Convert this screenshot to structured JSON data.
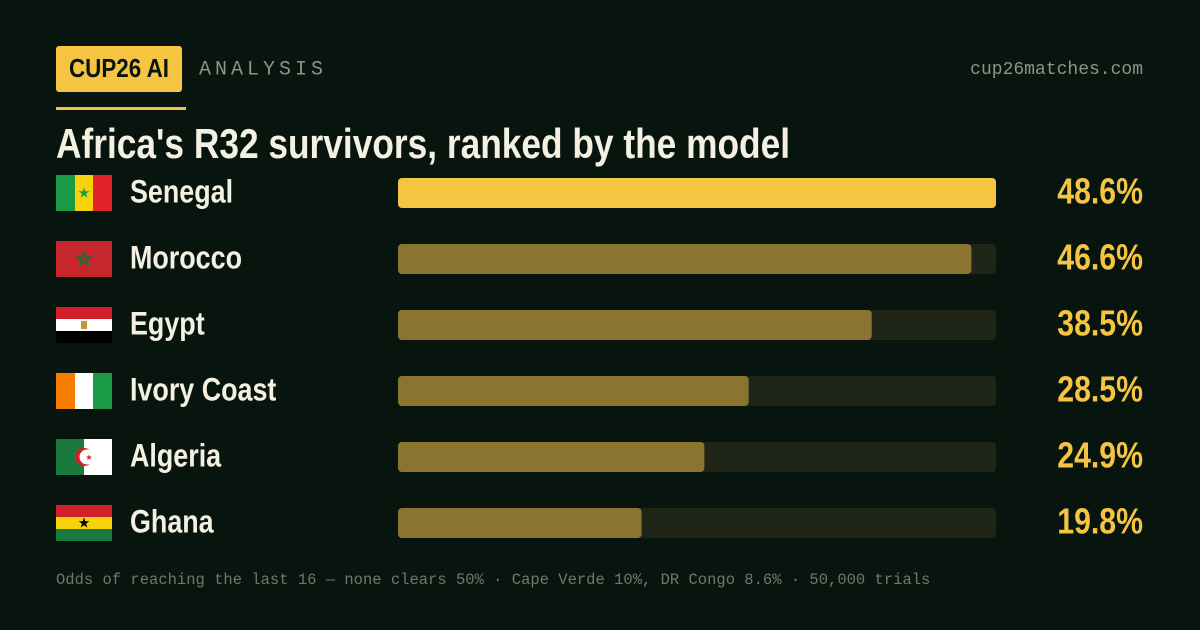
{
  "header": {
    "brand": "CUP26 AI",
    "section": "ANALYSIS",
    "site": "cup26matches.com"
  },
  "chart_data": {
    "type": "bar",
    "orientation": "horizontal",
    "title": "Africa's R32 survivors, ranked by the model",
    "categories": [
      "Senegal",
      "Morocco",
      "Egypt",
      "Ivory Coast",
      "Algeria",
      "Ghana"
    ],
    "values": [
      48.6,
      46.6,
      38.5,
      28.5,
      24.9,
      19.8
    ],
    "value_labels": [
      "48.6%",
      "46.6%",
      "38.5%",
      "28.5%",
      "24.9%",
      "19.8%"
    ],
    "colors": [
      "#f5c542",
      "#8a7430",
      "#8a7430",
      "#8a7430",
      "#8a7430",
      "#8a7430"
    ],
    "xlim": [
      0,
      48.6
    ]
  },
  "footnote": "Odds of reaching the last 16 — none clears 50% · Cape Verde 10%, DR Congo 8.6% · 50,000 trials"
}
